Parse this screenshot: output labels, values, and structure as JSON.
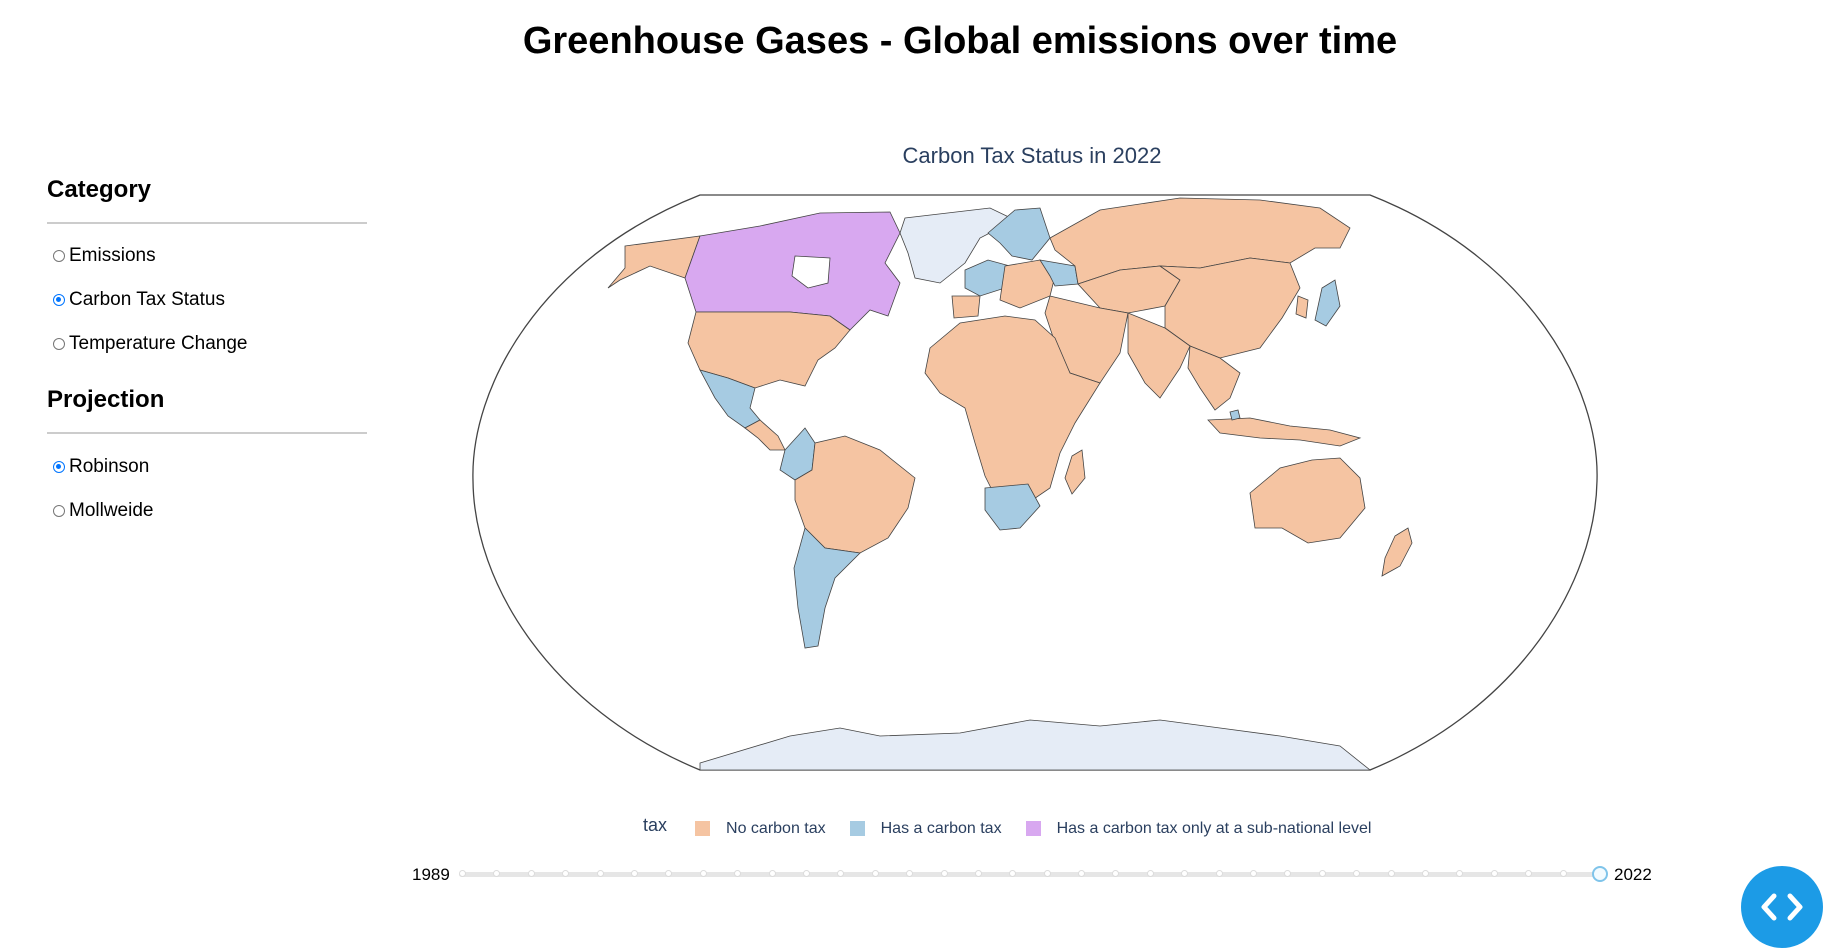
{
  "page": {
    "title": "Greenhouse Gases - Global emissions over time"
  },
  "sidebar": {
    "category": {
      "heading": "Category",
      "options": [
        {
          "label": "Emissions",
          "checked": false
        },
        {
          "label": "Carbon Tax Status",
          "checked": true
        },
        {
          "label": "Temperature Change",
          "checked": false
        }
      ]
    },
    "projection": {
      "heading": "Projection",
      "options": [
        {
          "label": "Robinson",
          "checked": true
        },
        {
          "label": "Mollweide",
          "checked": false
        }
      ]
    }
  },
  "map": {
    "title": "Carbon Tax Status in 2022",
    "projection": "Robinson",
    "colors": {
      "no_tax": "#f5c4a2",
      "has_tax": "#a6cbe2",
      "subnational": "#d8a8f0",
      "no_data": "#e5ecf6",
      "border": "#444444"
    },
    "legend": {
      "title": "tax",
      "items": [
        {
          "label": "No carbon tax",
          "color": "#f5c4a2"
        },
        {
          "label": "Has a carbon tax",
          "color": "#a6cbe2"
        },
        {
          "label": "Has a carbon tax only at a sub-national level",
          "color": "#d8a8f0"
        }
      ]
    }
  },
  "slider": {
    "min_label": "1989",
    "max_label": "2022",
    "min_year": 1989,
    "max_year": 2022,
    "value": 2022,
    "track_color": "#e6e6e6",
    "handle_color": "#7fc4ea"
  },
  "code_button": {
    "icon": "code-icon",
    "color": "#1c9be6"
  }
}
